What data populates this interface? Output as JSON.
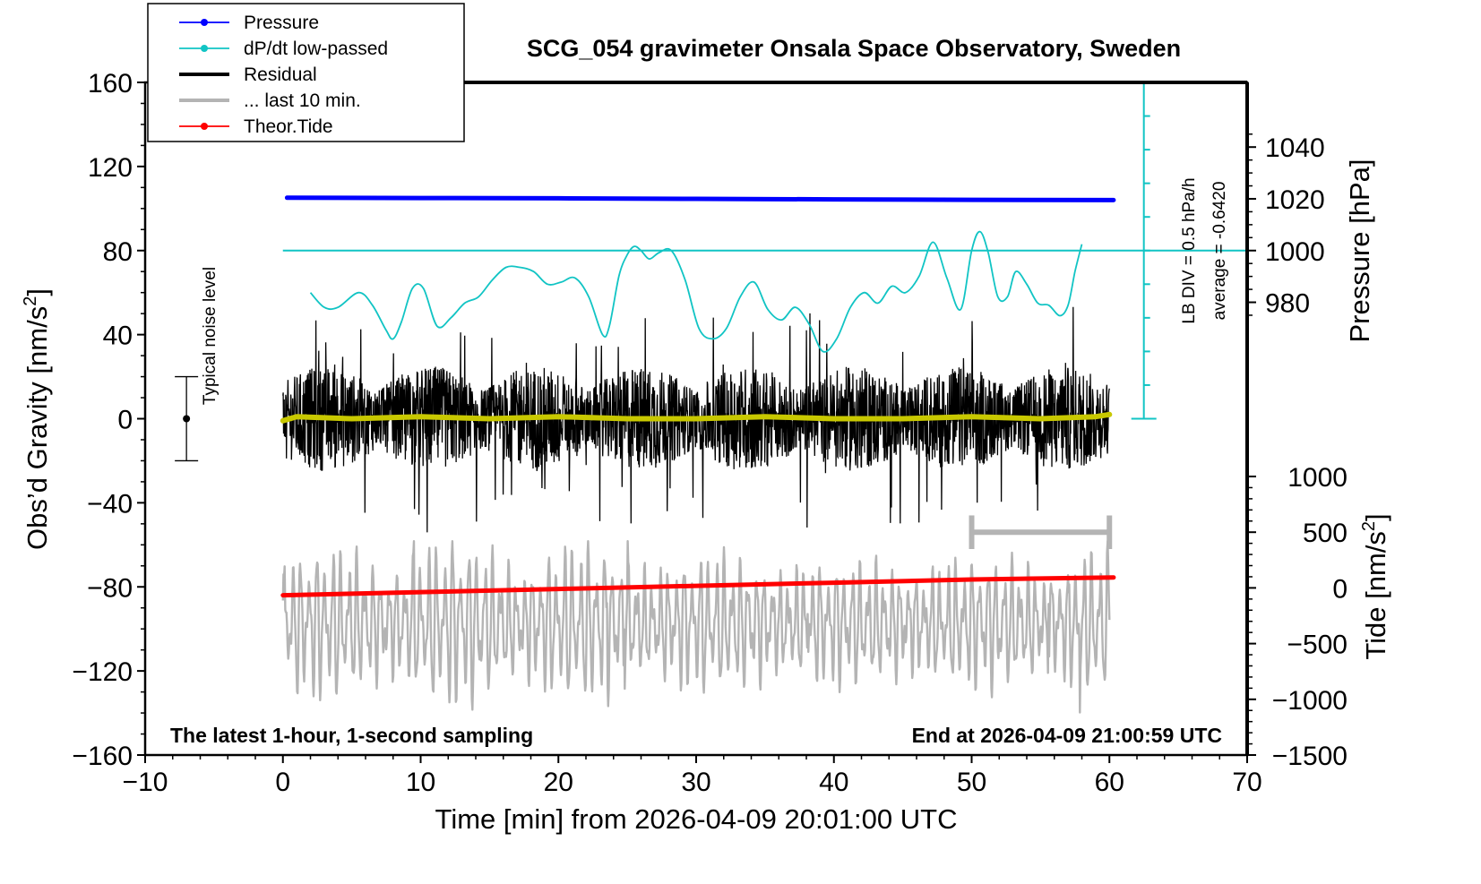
{
  "chart_data": {
    "type": "line",
    "title": "SCG_054 gravimeter Onsala Space Observatory, Sweden",
    "xlabel": "Time [min] from 2026-04-09 20:01:00 UTC",
    "ylabel_left_main": "Obs’d Gravity [nm/s",
    "ylabel_left_sup": "2",
    "ylabel_left_end": "]",
    "ylabel_right_pressure": "Pressure [hPa]",
    "ylabel_right_tide_main": "Tide [nm/s",
    "ylabel_right_tide_sup": "2",
    "ylabel_right_tide_end": "]",
    "xlim": [
      -10,
      70
    ],
    "ylim_gravity": [
      -160,
      160
    ],
    "ylim_pressure": [
      935,
      1065
    ],
    "ylim_tide": [
      -1500,
      1500
    ],
    "x_ticks": [
      -10,
      0,
      10,
      20,
      30,
      40,
      50,
      60,
      70
    ],
    "x_tick_labels": [
      "−10",
      "0",
      "10",
      "20",
      "30",
      "40",
      "50",
      "60",
      "70"
    ],
    "gravity_ticks": [
      -160,
      -120,
      -80,
      -40,
      0,
      40,
      80,
      120,
      160
    ],
    "gravity_tick_labels": [
      "−160",
      "−120",
      "−80",
      "−40",
      "0",
      "40",
      "80",
      "120",
      "160"
    ],
    "pressure_ticks": [
      980,
      1000,
      1020,
      1040
    ],
    "pressure_tick_labels": [
      "980",
      "1000",
      "1020",
      "1040"
    ],
    "tide_ticks": [
      -1500,
      -1000,
      -500,
      0,
      500,
      1000
    ],
    "tide_tick_labels": [
      "−1500",
      "−1000",
      "−500",
      "0",
      "500",
      "1000"
    ],
    "footer_left": "The latest 1-hour, 1-second sampling",
    "footer_right": "End at 2026-04-09 21:00:59 UTC",
    "legend": [
      {
        "label": "Pressure",
        "color": "#0000ff",
        "marker": true
      },
      {
        "label": "dP/dt low-passed",
        "color": "#11c4c4",
        "marker": true
      },
      {
        "label": "Residual",
        "color": "#000000",
        "marker": false
      },
      {
        "label": "... last 10 min.",
        "color": "#b4b4b4",
        "marker": false
      },
      {
        "label": "Theor.Tide",
        "color": "#ff0000",
        "marker": true
      }
    ],
    "noise_level": {
      "label": "Typical noise level",
      "x": -7,
      "center": 0,
      "half_range": 20
    },
    "lb_div_label": "LB DIV = 0.5 hPa/h",
    "average_label": "average = -0.6420",
    "lb_scale": {
      "x": 62.5,
      "top_gravity": 160,
      "bottom_gravity": 0,
      "ref_gravity": 80,
      "divisions": 10
    },
    "last10_bar": {
      "x_start": 50,
      "x_end": 60,
      "gravity": -54,
      "half_height_gravity": 8
    },
    "series": [
      {
        "name": "Pressure",
        "axis": "pressure",
        "color": "#0000ff",
        "x": [
          0.3,
          10,
          20,
          30,
          40,
          50,
          60.3
        ],
        "y": [
          1020.4,
          1020.3,
          1020.2,
          1020.0,
          1019.8,
          1019.6,
          1019.5
        ]
      },
      {
        "name": "dP/dt low-passed",
        "axis": "gravity",
        "color": "#11c4c4",
        "x": [
          2.0,
          3.0,
          4.0,
          5.5,
          6.5,
          7.5,
          8.0,
          8.6,
          9.4,
          10.2,
          11.2,
          12.2,
          13.2,
          14.2,
          15.2,
          16.2,
          17.2,
          18.2,
          19.2,
          20.2,
          21.2,
          22.2,
          23.2,
          23.7,
          24.4,
          25.0,
          25.5,
          26.0,
          26.6,
          27.3,
          28.2,
          29.2,
          30.2,
          31.2,
          32.2,
          33.2,
          34.2,
          35.2,
          36.2,
          37.2,
          38.2,
          39.2,
          40.2,
          41.2,
          42.2,
          43.2,
          44.2,
          45.2,
          46.2,
          47.2,
          48.2,
          49.2,
          50.0,
          50.6,
          51.2,
          51.9,
          52.6,
          53.2,
          54.0,
          54.8,
          55.6,
          56.4,
          57.0,
          57.5,
          58.0
        ],
        "y": [
          60,
          53,
          53,
          60,
          54,
          42,
          38,
          46,
          62,
          62,
          44,
          48,
          55,
          58,
          66,
          72,
          72,
          70,
          64,
          65,
          67,
          58,
          40,
          44,
          68,
          78,
          82,
          80,
          76,
          79,
          80,
          66,
          43,
          38,
          43,
          58,
          65,
          52,
          47,
          53,
          45,
          32,
          38,
          53,
          60,
          55,
          63,
          60,
          68,
          84,
          67,
          52,
          80,
          89,
          79,
          58,
          58,
          70,
          64,
          55,
          54,
          49,
          54,
          70,
          83
        ]
      },
      {
        "name": "Residual",
        "axis": "gravity",
        "color": "#000000",
        "x_range": [
          0,
          60
        ],
        "typical_amplitude": 25,
        "peak_amplitude": 55
      },
      {
        "name": "Residual smoothed",
        "axis": "gravity",
        "color": "#c8c800",
        "x": [
          0,
          1,
          5,
          10,
          15,
          20,
          25,
          30,
          35,
          40,
          45,
          50,
          55,
          59,
          60
        ],
        "y": [
          -1,
          1,
          0,
          1,
          0,
          1,
          0,
          0,
          1,
          0,
          0,
          1,
          0,
          1,
          2
        ]
      },
      {
        "name": "Theor.Tide",
        "axis": "gravity",
        "color": "#ff0000",
        "x": [
          0,
          10,
          20,
          30,
          40,
          50,
          60.3
        ],
        "y": [
          -84,
          -82.5,
          -81,
          -79.5,
          -78,
          -76.5,
          -75.5
        ]
      },
      {
        "name": "... last 10 min.",
        "axis": "tide",
        "color": "#b4b4b4",
        "x_range": [
          0,
          60
        ],
        "typical_amplitude": 500,
        "peak_amplitude": 1400
      }
    ]
  }
}
